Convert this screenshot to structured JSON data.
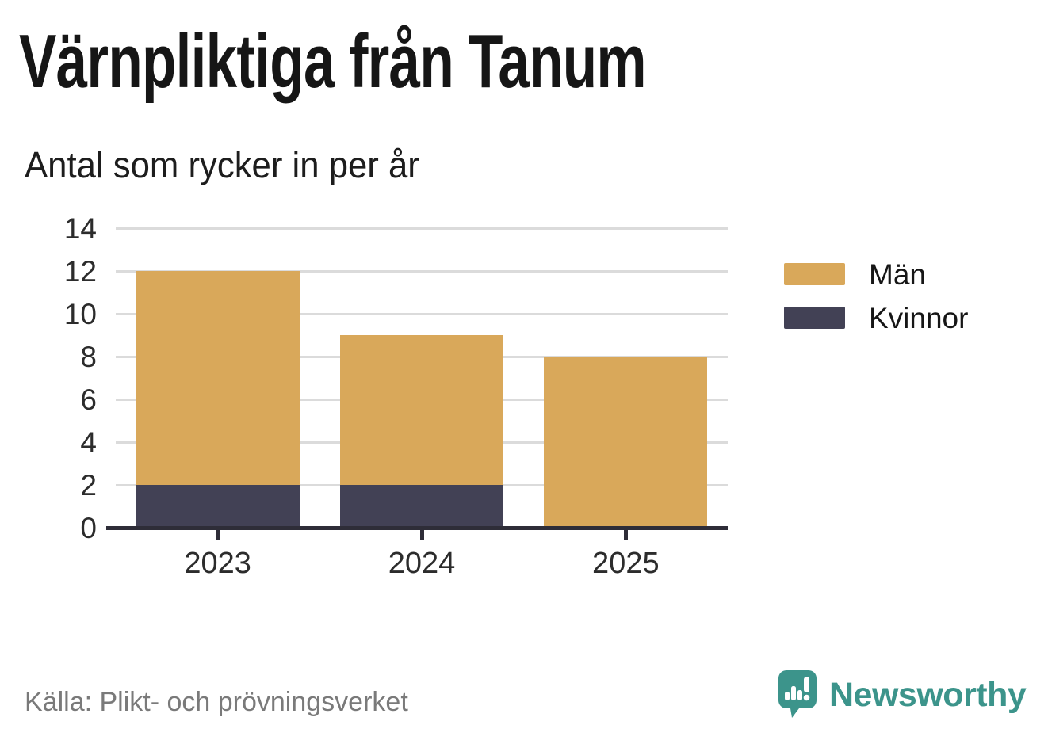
{
  "header": {
    "title": "Värnpliktiga från Tanum",
    "subtitle": "Antal som rycker in per år"
  },
  "chart_data": {
    "type": "bar",
    "stacked": true,
    "title": "Värnpliktiga från Tanum",
    "subtitle": "Antal som rycker in per år",
    "categories": [
      "2023",
      "2024",
      "2025"
    ],
    "series": [
      {
        "name": "Män",
        "color": "#d9a85a",
        "values": [
          10,
          7,
          8
        ]
      },
      {
        "name": "Kvinnor",
        "color": "#424155",
        "values": [
          2,
          2,
          0
        ]
      }
    ],
    "stack_totals": [
      12,
      9,
      8
    ],
    "ylim": [
      0,
      14
    ],
    "yticks": [
      0,
      2,
      4,
      6,
      8,
      10,
      12,
      14
    ],
    "grid": "horizontal",
    "legend_position": "right",
    "colors": {
      "gridline": "#dbdbdb",
      "axis": "#2e2d38",
      "tick_label": "#2c2c2c"
    }
  },
  "footer": {
    "source": "Källa: Plikt- och prövningsverket",
    "brand": "Newsworthy",
    "brand_color": "#3c948b"
  }
}
